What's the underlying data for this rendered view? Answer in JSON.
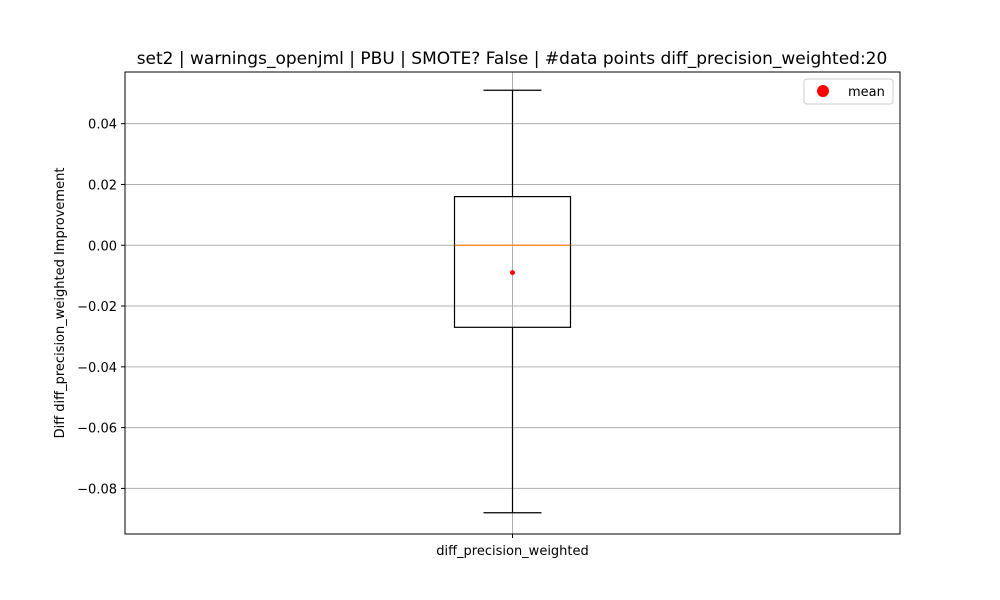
{
  "chart_data": {
    "type": "box",
    "title": "set2 | warnings_openjml | PBU | SMOTE? False | #data points diff_precision_weighted:20",
    "xlabel": "",
    "ylabel": "Diff diff_precision_weighted Improvement",
    "categories": [
      "diff_precision_weighted"
    ],
    "boxes": [
      {
        "category": "diff_precision_weighted",
        "whisker_low": -0.088,
        "q1": -0.027,
        "median": 0.0,
        "q3": 0.016,
        "whisker_high": 0.051,
        "mean": -0.009
      }
    ],
    "ylim": [
      -0.095,
      0.057
    ],
    "yticks": [
      0.04,
      0.02,
      0.0,
      -0.02,
      -0.04,
      -0.06,
      -0.08
    ],
    "ytick_labels": [
      "0.04",
      "0.02",
      "0.00",
      "−0.02",
      "−0.04",
      "−0.06",
      "−0.08"
    ],
    "grid": true,
    "legend": {
      "position": "top-right",
      "entries": [
        {
          "label": "mean",
          "color": "#ff0000",
          "marker": "circle"
        }
      ]
    },
    "colors": {
      "box": "#000000",
      "median": "#ff7f0e",
      "mean": "#ff0000",
      "grid": "#b0b0b0"
    }
  }
}
